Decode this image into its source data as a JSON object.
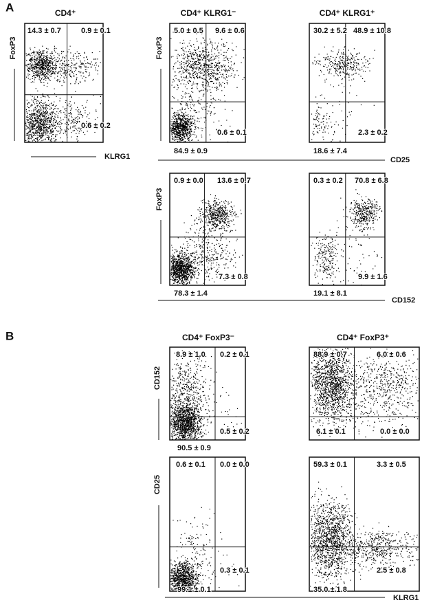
{
  "panel_labels": [
    "A",
    "B"
  ],
  "titles": [
    "CD4⁺",
    "CD4⁺ KLRG1⁻",
    "CD4⁺ KLRG1⁺",
    "CD4⁺ FoxP3⁻",
    "CD4⁺ FoxP3⁺"
  ],
  "axis_labels": [
    "FoxP3",
    "FoxP3",
    "FoxP3",
    "KLRG1",
    "CD25",
    "CD152",
    "CD152",
    "CD25",
    "KLRG1"
  ],
  "plots": [
    {
      "ul": "14.3 ± 0.7",
      "ur": "0.9 ± 0.1",
      "lr": "0.6 ± 0.2"
    },
    {
      "ul": "5.0 ± 0.5",
      "ur": "9.6 ± 0.6",
      "lr": "0.6 ± 0.1",
      "ll": "84.9 ± 0.9"
    },
    {
      "ul": "30.2 ± 5.2",
      "ur": "48.9 ± 10.8",
      "lr": "2.3 ± 0.2",
      "ll": "18.6 ± 7.4"
    },
    {
      "ul": "0.9 ± 0.0",
      "ur": "13.6 ± 0.7",
      "lr": "7.3 ± 0.8",
      "ll": "78.3 ± 1.4"
    },
    {
      "ul": "0.3 ± 0.2",
      "ur": "70.8 ± 6.8",
      "lr": "9.9 ± 1.6",
      "ll": "19.1 ± 8.1"
    },
    {
      "ul": "8.9 ± 1.0",
      "ur": "0.2 ± 0.1",
      "lr": "0.5 ± 0.2",
      "ll": "90.5 ± 0.9"
    },
    {
      "ul": "88.9 ± 0.7",
      "ur": "6.0 ± 0.6",
      "lr": "0.0 ± 0.0",
      "ll": "6.1 ± 0.1"
    },
    {
      "ul": "0.6 ± 0.1",
      "ur": "0.0 ± 0.0",
      "lr": "0.3 ± 0.1",
      "ll": "99.1 ± 0.1"
    },
    {
      "ul": "59.3 ± 0.1",
      "ur": "3.3 ± 0.5",
      "lr": "2.5 ± 0.8",
      "ll": "35.0 ± 1.8"
    }
  ]
}
